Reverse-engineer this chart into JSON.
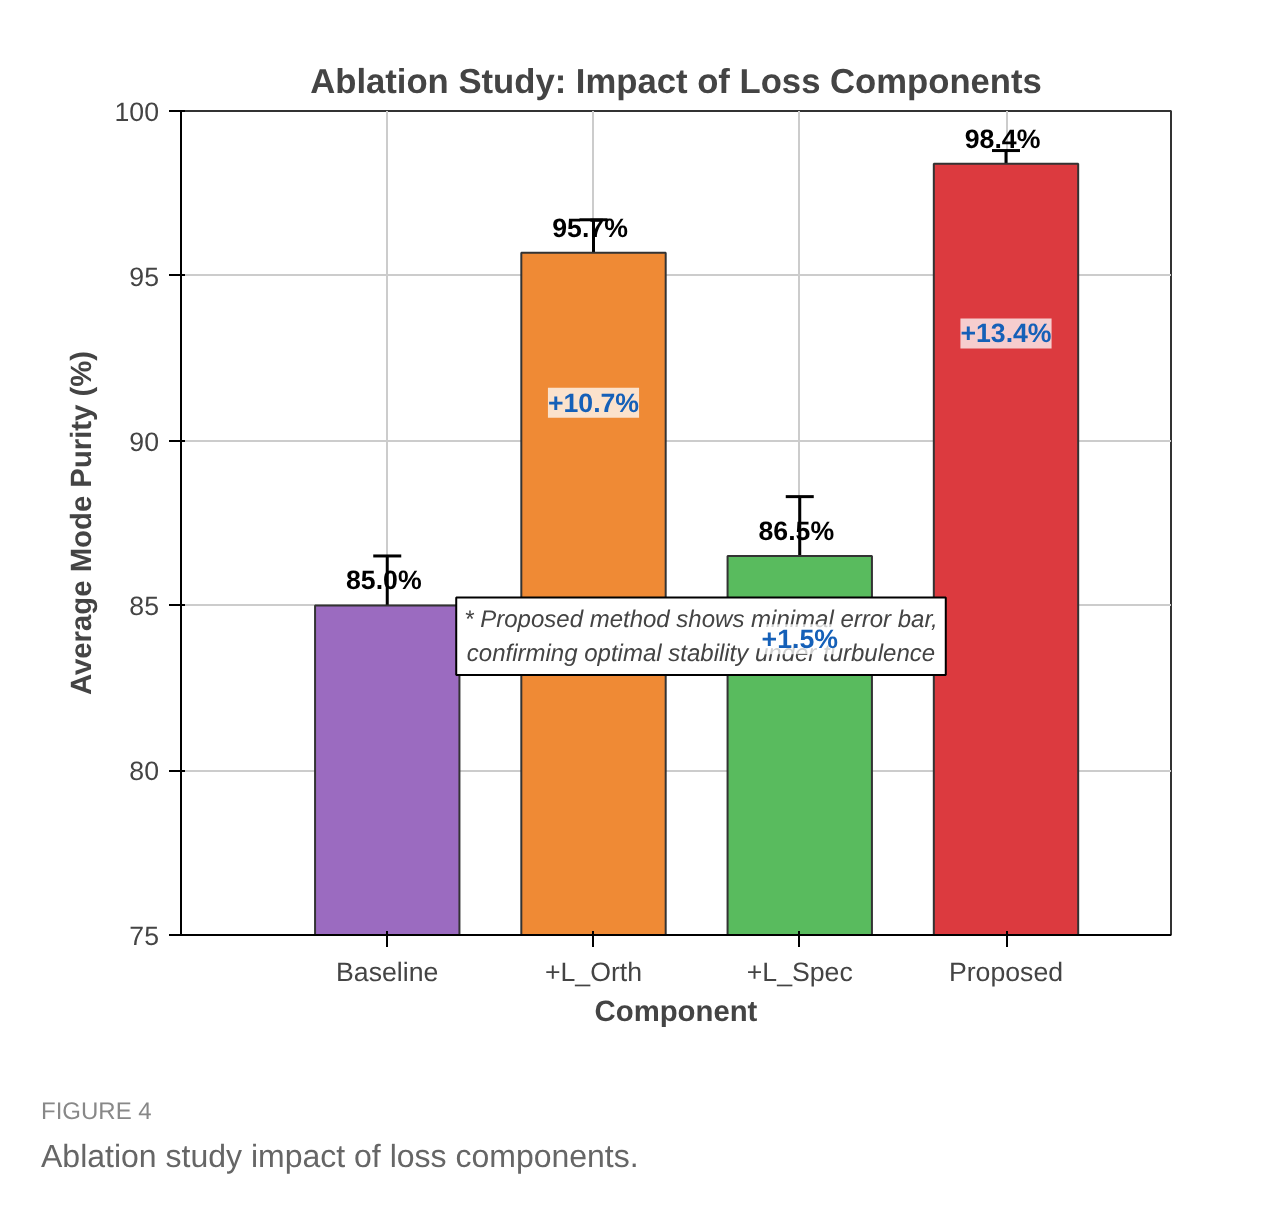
{
  "chart_data": {
    "type": "bar",
    "title": "Ablation Study: Impact of Loss Components",
    "xlabel": "Component",
    "ylabel": "Average Mode Purity (%)",
    "categories": [
      "Baseline",
      "+L_Orth",
      "+L_Spec",
      "Proposed"
    ],
    "values": [
      85.0,
      95.7,
      86.5,
      98.4
    ],
    "colors": [
      "#9b6bc0",
      "#ef8a35",
      "#59bb5e",
      "#dc3a3f"
    ],
    "errors": [
      1.5,
      1.0,
      1.8,
      0.4
    ],
    "value_labels": [
      "85.0%",
      "95.7%",
      "86.5%",
      "98.4%"
    ],
    "ylim": [
      75,
      100
    ],
    "yticks": [
      75,
      80,
      85,
      90,
      95,
      100
    ],
    "grid": true,
    "annotations": [
      "* Proposed method shows minimal error bar,\nconfirming optimal stability under turbulence",
      "FIGURE 4",
      "Ablation study impact of loss components.",
      "+10.7%",
      "+1.5%",
      "+13.4%"
    ]
  }
}
